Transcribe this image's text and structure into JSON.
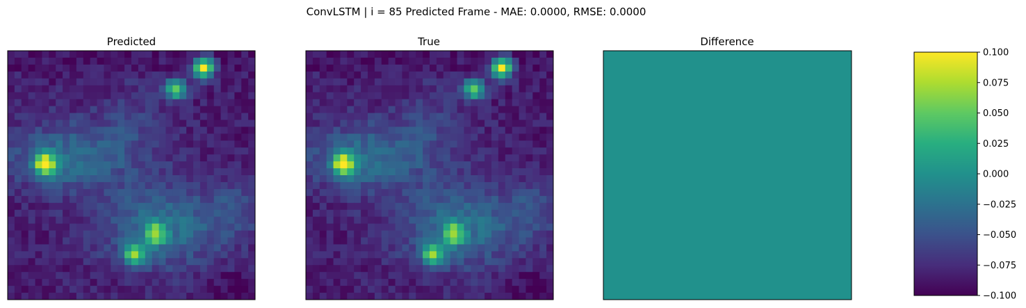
{
  "figure": {
    "suptitle": "ConvLSTM | i = 85 Predicted Frame - MAE: 0.0000, RMSE: 0.0000"
  },
  "chart_data": [
    {
      "type": "heatmap",
      "title": "Predicted",
      "grid_size": [
        36,
        36
      ],
      "colormap": "viridis",
      "axes_ticks": "none",
      "hotspots": [
        {
          "row": 2,
          "col": 28,
          "value": 1.0
        },
        {
          "row": 5,
          "col": 24,
          "value": 0.7
        },
        {
          "row": 16,
          "col": 5,
          "value": 0.95
        },
        {
          "row": 29,
          "col": 18,
          "value": 0.75
        },
        {
          "row": 26,
          "col": 21,
          "value": 0.6
        }
      ]
    },
    {
      "type": "heatmap",
      "title": "True",
      "grid_size": [
        36,
        36
      ],
      "colormap": "viridis",
      "axes_ticks": "none",
      "hotspots": [
        {
          "row": 2,
          "col": 28,
          "value": 1.0
        },
        {
          "row": 5,
          "col": 24,
          "value": 0.7
        },
        {
          "row": 16,
          "col": 5,
          "value": 0.95
        },
        {
          "row": 29,
          "col": 18,
          "value": 0.75
        },
        {
          "row": 26,
          "col": 21,
          "value": 0.6
        }
      ]
    },
    {
      "type": "heatmap",
      "title": "Difference",
      "grid_size": [
        36,
        36
      ],
      "colormap": "viridis",
      "uniform_value": 0.0,
      "axes_ticks": "none"
    },
    {
      "type": "colorbar",
      "colormap": "viridis",
      "range": [
        -0.1,
        0.1
      ],
      "ticks": [
        0.1,
        0.075,
        0.05,
        0.025,
        0.0,
        -0.025,
        -0.05,
        -0.075,
        -0.1
      ],
      "tick_labels": [
        "0.100",
        "0.075",
        "0.050",
        "0.025",
        "0.000",
        "−0.025",
        "−0.050",
        "−0.075",
        "−0.100"
      ]
    }
  ]
}
